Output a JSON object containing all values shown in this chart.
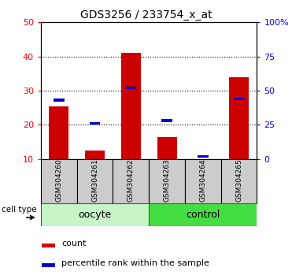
{
  "title": "GDS3256 / 233754_x_at",
  "samples": [
    "GSM304260",
    "GSM304261",
    "GSM304262",
    "GSM304263",
    "GSM304264",
    "GSM304265"
  ],
  "count_values": [
    25.5,
    12.5,
    41.0,
    16.5,
    10.0,
    34.0
  ],
  "percentile_values": [
    43.0,
    26.0,
    52.0,
    28.0,
    2.0,
    44.0
  ],
  "left_ylim": [
    10,
    50
  ],
  "left_yticks": [
    10,
    20,
    30,
    40,
    50
  ],
  "right_ylim": [
    0,
    100
  ],
  "right_yticks": [
    0,
    25,
    50,
    75,
    100
  ],
  "right_yticklabels": [
    "0",
    "25",
    "50",
    "75",
    "100%"
  ],
  "bar_color": "#cc0000",
  "percentile_color": "#0000cc",
  "oocyte_bg": "#c8f5c8",
  "control_bg": "#44dd44",
  "oocyte_label": "oocyte",
  "control_label": "control",
  "legend_count_label": "count",
  "legend_percentile_label": "percentile rank within the sample",
  "cell_type_label": "cell type",
  "bar_width": 0.55,
  "sample_bg": "#cccccc",
  "title_fontsize": 10
}
